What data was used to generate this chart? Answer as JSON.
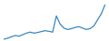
{
  "values": [
    47.0,
    47.5,
    48.2,
    48.8,
    48.5,
    49.2,
    50.0,
    50.5,
    50.0,
    50.3,
    50.8,
    51.2,
    50.9,
    50.5,
    58.5,
    54.5,
    52.5,
    51.8,
    52.2,
    52.8,
    53.2,
    52.5,
    51.8,
    52.2,
    53.5,
    56.5,
    59.5,
    64.0
  ],
  "line_color": "#3787c0",
  "background_color": "#ffffff",
  "linewidth": 0.9
}
